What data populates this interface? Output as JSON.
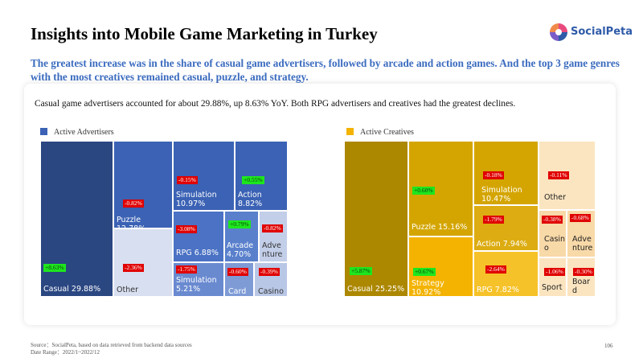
{
  "header": {
    "title": "Insights into Mobile Game Marketing in Turkey",
    "logo_text": "SocialPeta",
    "subtitle": "The greatest increase was in the share of casual game advertisers, followed by arcade and action games. And the top 3 game genres with the most creatives remained casual, puzzle, and strategy."
  },
  "card_text": "Casual game advertisers accounted for about 29.88%, up 8.63% YoY. Both RPG advertisers and creatives had the greatest declines.",
  "colors": {
    "advertisers_legend": "#3b62b4",
    "creatives_legend": "#f3b300",
    "positive": "#1ee61e",
    "negative": "#e00000"
  },
  "chart_data": [
    {
      "type": "treemap",
      "legend": "Active Advertisers",
      "items": [
        {
          "name": "Casual",
          "label": "Casual 29.88%",
          "share": 29.88,
          "change_label": "+8.63%",
          "change": 8.63
        },
        {
          "name": "Puzzle",
          "label": "Puzzle 12.78%",
          "share": 12.78,
          "change_label": "-0.82%",
          "change": -0.82
        },
        {
          "name": "Other",
          "label": "Other",
          "share": null,
          "change_label": "-2.36%",
          "change": -2.36
        },
        {
          "name": "Simulation",
          "label": "Simulation 10.97%",
          "share": 10.97,
          "change_label": "-0.15%",
          "change": -0.15
        },
        {
          "name": "Action",
          "label": "Action 8.82%",
          "share": 8.82,
          "change_label": "+0.55%",
          "change": 0.55
        },
        {
          "name": "RPG",
          "label": "RPG 6.88%",
          "share": 6.88,
          "change_label": "-3.08%",
          "change": -3.08
        },
        {
          "name": "Arcade",
          "label": "Arcade 4.70%",
          "share": 4.7,
          "change_label": "+0.79%",
          "change": 0.79
        },
        {
          "name": "Adventure",
          "label": "Adve nture",
          "share": null,
          "change_label": "-0.82%",
          "change": -0.82
        },
        {
          "name": "Simulation",
          "label": "Simulation 5.21%",
          "share": 5.21,
          "change_label": "-1.75%",
          "change": -1.75
        },
        {
          "name": "Card",
          "label": "Card",
          "share": null,
          "change_label": "-0.60%",
          "change": -0.6
        },
        {
          "name": "Casino",
          "label": "Casino",
          "share": null,
          "change_label": "-0.39%",
          "change": -0.39
        }
      ]
    },
    {
      "type": "treemap",
      "legend": "Active Creatives",
      "items": [
        {
          "name": "Casual",
          "label": "Casual 25.25%",
          "share": 25.25,
          "change_label": "+5.87%",
          "change": 5.87
        },
        {
          "name": "Puzzle",
          "label": "Puzzle 15.16%",
          "share": 15.16,
          "change_label": "+0.60%",
          "change": 0.6
        },
        {
          "name": "Strategy",
          "label": "Strategy 10.92%",
          "share": 10.92,
          "change_label": "+0.67%",
          "change": 0.67
        },
        {
          "name": "Simulation",
          "label": "Simulation 10.47%",
          "share": 10.47,
          "change_label": "-0.18%",
          "change": -0.18
        },
        {
          "name": "Action",
          "label": "Action 7.94%",
          "share": 7.94,
          "change_label": "-1.79%",
          "change": -1.79
        },
        {
          "name": "RPG",
          "label": "RPG 7.82%",
          "share": 7.82,
          "change_label": "-2.64%",
          "change": -2.64
        },
        {
          "name": "Other",
          "label": "Other",
          "share": null,
          "change_label": "-0.11%",
          "change": -0.11
        },
        {
          "name": "Casino",
          "label": "Casin o",
          "share": null,
          "change_label": "-0.38%",
          "change": -0.38
        },
        {
          "name": "Adventure",
          "label": "Adve nture",
          "share": null,
          "change_label": "-0.68%",
          "change": -0.68
        },
        {
          "name": "Sport",
          "label": "Sport",
          "share": null,
          "change_label": "-1.06%",
          "change": -1.06
        },
        {
          "name": "Board",
          "label": "Boar d",
          "share": null,
          "change_label": "-0.30%",
          "change": -0.3
        }
      ]
    }
  ],
  "footer": {
    "source": "Source：SocialPeta, based on data retrieved from backend data sources",
    "date_range": "Date Range：2022/1~2022/12",
    "page_number": "106"
  }
}
